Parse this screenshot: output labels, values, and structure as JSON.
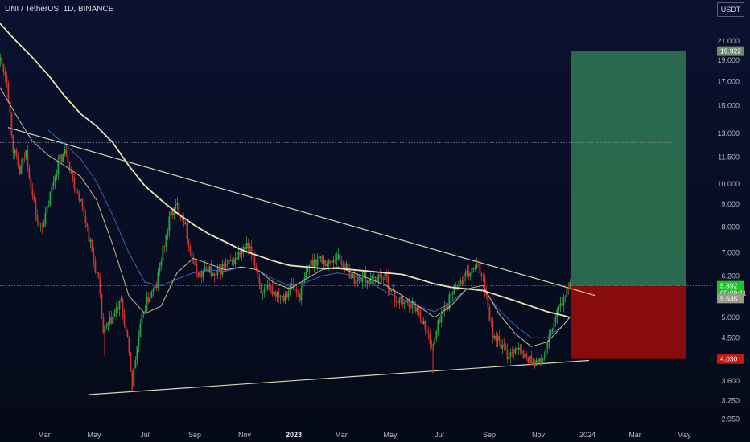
{
  "header": {
    "symbol": "UNI / TetherUS, 1D, BINANCE",
    "currency_button": "USDT"
  },
  "badges": {
    "target": "19.922",
    "price_line1": "5.892",
    "price_line2": "05:09:11",
    "ma_value": "5.635",
    "stop": "4.030"
  },
  "colors": {
    "background_top": "#0b1230",
    "background_bottom": "#050a18",
    "up_candle": "#27a844",
    "down_candle": "#d0342c",
    "target_zone": "#2f7a55",
    "stop_zone": "#8f0d0d",
    "trendline": "#d9d7b4",
    "ma_slow": "#e8e3b7",
    "ma_mid": "#c9b98e",
    "ma_fast": "#3a66b8",
    "target_badge": "#6f8a6d",
    "price_badge": "#23c12c",
    "stop_badge": "#c41a16",
    "ma_badge": "#9a9a8a"
  },
  "chart_data": {
    "type": "candlestick",
    "symbol": "UNI / TetherUS",
    "timeframe": "1D",
    "exchange": "BINANCE",
    "y_scale": "log",
    "ylim": [
      2.8,
      23.5
    ],
    "y_ticks": [
      "21.000",
      "19.000",
      "17.000",
      "15.000",
      "13.000",
      "11.500",
      "10.000",
      "9.000",
      "8.000",
      "7.000",
      "6.200",
      "5.000",
      "4.500",
      "3.600",
      "3.250",
      "2.950"
    ],
    "x_ticks": [
      "Mar",
      "May",
      "Jul",
      "Sep",
      "Nov",
      "2023",
      "Mar",
      "May",
      "Jul",
      "Sep",
      "Nov",
      "2024",
      "Mar",
      "May"
    ],
    "x_tick_bold": "2023",
    "x_tick_idx": [
      55,
      117,
      180,
      242,
      304,
      365,
      424,
      485,
      546,
      608,
      669,
      730,
      789,
      850
    ],
    "x_range": [
      0,
      900
    ],
    "last_price": 5.892,
    "countdown": "05:09:11",
    "ma_last": 5.635,
    "target": 19.922,
    "stop": 4.03,
    "dotted_level": 12.4,
    "trendline_upper": [
      [
        10,
        13.4
      ],
      [
        740,
        5.6
      ]
    ],
    "trendline_lower": [
      [
        110,
        3.35
      ],
      [
        732,
        4.0
      ]
    ],
    "price_path": [
      [
        0,
        19.0
      ],
      [
        8,
        17.3
      ],
      [
        16,
        12.0
      ],
      [
        24,
        10.6
      ],
      [
        32,
        11.8
      ],
      [
        40,
        9.4
      ],
      [
        48,
        7.9
      ],
      [
        56,
        8.4
      ],
      [
        64,
        9.8
      ],
      [
        72,
        11.2
      ],
      [
        82,
        11.9
      ],
      [
        90,
        10.2
      ],
      [
        98,
        9.4
      ],
      [
        106,
        8.3
      ],
      [
        114,
        7.0
      ],
      [
        122,
        6.0
      ],
      [
        128,
        4.6
      ],
      [
        134,
        4.8
      ],
      [
        142,
        5.1
      ],
      [
        150,
        5.4
      ],
      [
        158,
        4.4
      ],
      [
        164,
        3.55
      ],
      [
        170,
        4.3
      ],
      [
        178,
        5.2
      ],
      [
        186,
        5.6
      ],
      [
        194,
        5.9
      ],
      [
        200,
        6.8
      ],
      [
        206,
        7.6
      ],
      [
        212,
        8.6
      ],
      [
        220,
        8.9
      ],
      [
        228,
        8.3
      ],
      [
        236,
        7.1
      ],
      [
        242,
        6.4
      ],
      [
        250,
        6.2
      ],
      [
        258,
        6.5
      ],
      [
        266,
        6.1
      ],
      [
        276,
        6.5
      ],
      [
        286,
        6.6
      ],
      [
        296,
        6.9
      ],
      [
        306,
        7.2
      ],
      [
        314,
        6.9
      ],
      [
        320,
        6.2
      ],
      [
        326,
        5.6
      ],
      [
        334,
        5.8
      ],
      [
        342,
        5.7
      ],
      [
        352,
        5.6
      ],
      [
        362,
        5.9
      ],
      [
        372,
        5.6
      ],
      [
        384,
        6.6
      ],
      [
        396,
        6.8
      ],
      [
        408,
        6.6
      ],
      [
        418,
        6.9
      ],
      [
        426,
        6.6
      ],
      [
        434,
        6.3
      ],
      [
        442,
        6.0
      ],
      [
        450,
        6.2
      ],
      [
        460,
        6.0
      ],
      [
        470,
        6.2
      ],
      [
        480,
        6.1
      ],
      [
        490,
        5.5
      ],
      [
        500,
        5.4
      ],
      [
        510,
        5.4
      ],
      [
        520,
        5.2
      ],
      [
        530,
        4.6
      ],
      [
        538,
        4.3
      ],
      [
        546,
        5.0
      ],
      [
        556,
        5.4
      ],
      [
        566,
        5.9
      ],
      [
        576,
        6.1
      ],
      [
        584,
        6.3
      ],
      [
        592,
        6.5
      ],
      [
        600,
        6.2
      ],
      [
        606,
        5.3
      ],
      [
        612,
        4.6
      ],
      [
        620,
        4.4
      ],
      [
        630,
        4.1
      ],
      [
        640,
        4.3
      ],
      [
        650,
        4.1
      ],
      [
        660,
        4.0
      ],
      [
        670,
        3.95
      ],
      [
        676,
        4.1
      ],
      [
        684,
        4.6
      ],
      [
        692,
        5.1
      ],
      [
        700,
        5.5
      ],
      [
        708,
        5.89
      ]
    ],
    "ma_slow": [
      [
        0,
        23
      ],
      [
        20,
        21
      ],
      [
        40,
        19.3
      ],
      [
        60,
        17.6
      ],
      [
        80,
        15.8
      ],
      [
        100,
        14.4
      ],
      [
        120,
        13.5
      ],
      [
        140,
        12.4
      ],
      [
        160,
        11.0
      ],
      [
        180,
        9.9
      ],
      [
        200,
        9.2
      ],
      [
        220,
        8.6
      ],
      [
        240,
        8.1
      ],
      [
        260,
        7.7
      ],
      [
        280,
        7.4
      ],
      [
        300,
        7.1
      ],
      [
        320,
        6.9
      ],
      [
        340,
        6.7
      ],
      [
        360,
        6.55
      ],
      [
        380,
        6.5
      ],
      [
        400,
        6.45
      ],
      [
        420,
        6.45
      ],
      [
        440,
        6.4
      ],
      [
        460,
        6.35
      ],
      [
        480,
        6.3
      ],
      [
        500,
        6.25
      ],
      [
        520,
        6.1
      ],
      [
        540,
        5.95
      ],
      [
        560,
        5.85
      ],
      [
        580,
        5.8
      ],
      [
        600,
        5.75
      ],
      [
        620,
        5.6
      ],
      [
        640,
        5.45
      ],
      [
        660,
        5.3
      ],
      [
        680,
        5.15
      ],
      [
        700,
        5.05
      ],
      [
        708,
        5.0
      ]
    ],
    "ma_mid": [
      [
        0,
        16.5
      ],
      [
        20,
        14.3
      ],
      [
        40,
        12.5
      ],
      [
        60,
        11.6
      ],
      [
        80,
        11.0
      ],
      [
        100,
        10.4
      ],
      [
        120,
        9.2
      ],
      [
        140,
        7.3
      ],
      [
        160,
        5.6
      ],
      [
        180,
        5.1
      ],
      [
        200,
        5.3
      ],
      [
        220,
        6.3
      ],
      [
        240,
        6.8
      ],
      [
        260,
        6.6
      ],
      [
        280,
        6.4
      ],
      [
        300,
        6.5
      ],
      [
        320,
        6.4
      ],
      [
        340,
        6.0
      ],
      [
        360,
        5.8
      ],
      [
        380,
        6.1
      ],
      [
        400,
        6.4
      ],
      [
        420,
        6.5
      ],
      [
        440,
        6.3
      ],
      [
        460,
        6.1
      ],
      [
        480,
        5.9
      ],
      [
        500,
        5.6
      ],
      [
        520,
        5.3
      ],
      [
        540,
        5.0
      ],
      [
        560,
        5.3
      ],
      [
        580,
        5.8
      ],
      [
        600,
        5.9
      ],
      [
        620,
        5.1
      ],
      [
        640,
        4.6
      ],
      [
        660,
        4.3
      ],
      [
        680,
        4.4
      ],
      [
        700,
        4.8
      ],
      [
        708,
        5.0
      ]
    ],
    "ma_fast": [
      [
        60,
        13.2
      ],
      [
        80,
        12.3
      ],
      [
        100,
        11.4
      ],
      [
        120,
        10.1
      ],
      [
        140,
        8.5
      ],
      [
        160,
        7.0
      ],
      [
        180,
        6.0
      ],
      [
        200,
        5.9
      ],
      [
        220,
        6.1
      ],
      [
        240,
        6.3
      ],
      [
        260,
        6.4
      ],
      [
        280,
        6.35
      ],
      [
        300,
        6.5
      ],
      [
        320,
        6.4
      ],
      [
        340,
        6.1
      ],
      [
        360,
        5.9
      ],
      [
        380,
        6.0
      ],
      [
        400,
        6.2
      ],
      [
        420,
        6.3
      ],
      [
        440,
        6.2
      ],
      [
        460,
        6.0
      ],
      [
        480,
        5.7
      ],
      [
        500,
        5.5
      ],
      [
        520,
        5.3
      ],
      [
        540,
        5.15
      ],
      [
        560,
        5.4
      ],
      [
        580,
        5.8
      ],
      [
        600,
        5.8
      ],
      [
        620,
        5.2
      ],
      [
        640,
        4.8
      ],
      [
        660,
        4.5
      ],
      [
        680,
        4.5
      ],
      [
        700,
        4.8
      ],
      [
        708,
        5.0
      ]
    ],
    "position": {
      "x0": 709,
      "x1": 852,
      "entry": 5.892,
      "target": 19.922,
      "stop": 4.03
    }
  }
}
